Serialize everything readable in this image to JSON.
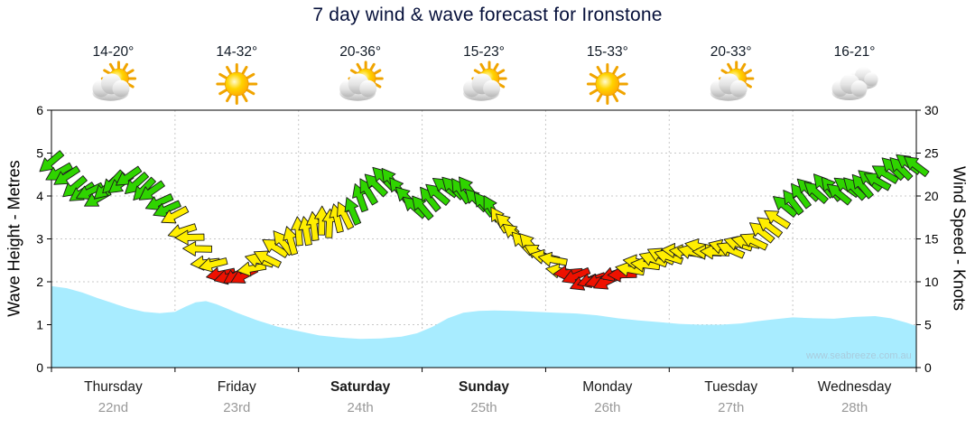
{
  "chart_data": {
    "type": "area+wind_arrows",
    "title": "7 day wind & wave forecast for Ironstone",
    "watermark": "www.seabreeze.com.au",
    "y_axis_left": {
      "label": "Wave Height - Metres",
      "min": 0,
      "max": 6,
      "ticks": [
        0,
        1,
        2,
        3,
        4,
        5,
        6
      ]
    },
    "y_axis_right": {
      "label": "Wind Speed - Knots",
      "min": 0,
      "max": 30,
      "ticks": [
        0,
        5,
        10,
        15,
        20,
        25,
        30
      ]
    },
    "x_axis": {
      "hours_total": 168,
      "days": [
        {
          "name": "Thursday",
          "date": "22nd",
          "temp": "14-20°",
          "icon": "sun-cloud",
          "bold": false
        },
        {
          "name": "Friday",
          "date": "23rd",
          "temp": "14-32°",
          "icon": "sun",
          "bold": false
        },
        {
          "name": "Saturday",
          "date": "24th",
          "temp": "20-36°",
          "icon": "sun-cloud",
          "bold": true
        },
        {
          "name": "Sunday",
          "date": "25th",
          "temp": "15-23°",
          "icon": "sun-cloud",
          "bold": true
        },
        {
          "name": "Monday",
          "date": "26th",
          "temp": "15-33°",
          "icon": "sun",
          "bold": false
        },
        {
          "name": "Tuesday",
          "date": "27th",
          "temp": "20-33°",
          "icon": "sun-cloud",
          "bold": false
        },
        {
          "name": "Wednesday",
          "date": "28th",
          "temp": "16-21°",
          "icon": "cloud",
          "bold": false
        }
      ]
    },
    "wave_height_m": {
      "hours": [
        0,
        3,
        6,
        9,
        12,
        15,
        18,
        21,
        24,
        26,
        28,
        30,
        32,
        34,
        36,
        40,
        44,
        48,
        52,
        56,
        60,
        64,
        68,
        71,
        74,
        77,
        80,
        83,
        86,
        90,
        94,
        98,
        102,
        106,
        110,
        114,
        118,
        122,
        126,
        130,
        134,
        137,
        140,
        144,
        148,
        152,
        156,
        160,
        163,
        166,
        168
      ],
      "values": [
        1.9,
        1.85,
        1.75,
        1.62,
        1.5,
        1.38,
        1.3,
        1.27,
        1.3,
        1.42,
        1.52,
        1.55,
        1.48,
        1.38,
        1.28,
        1.1,
        0.95,
        0.85,
        0.75,
        0.7,
        0.67,
        0.68,
        0.72,
        0.8,
        0.95,
        1.15,
        1.28,
        1.32,
        1.33,
        1.32,
        1.3,
        1.28,
        1.26,
        1.22,
        1.15,
        1.1,
        1.06,
        1.02,
        1.0,
        1.0,
        1.03,
        1.08,
        1.12,
        1.17,
        1.15,
        1.14,
        1.18,
        1.2,
        1.15,
        1.05,
        0.97
      ]
    },
    "wind": {
      "hours": [
        0,
        3,
        6,
        9,
        12,
        15,
        18,
        21,
        24,
        27,
        30,
        33,
        36,
        39,
        42,
        45,
        48,
        51,
        54,
        57,
        60,
        63,
        66,
        69,
        72,
        75,
        78,
        81,
        84,
        87,
        90,
        93,
        96,
        99,
        102,
        105,
        108,
        111,
        114,
        117,
        120,
        123,
        126,
        129,
        132,
        135,
        138,
        141,
        144,
        147,
        150,
        153,
        156,
        159,
        162,
        165,
        168
      ],
      "speed_knots": [
        24,
        22,
        20.5,
        20,
        21.5,
        22,
        21,
        19.5,
        17.5,
        15,
        12.5,
        11,
        10.5,
        11.5,
        13,
        14.5,
        15.5,
        16.5,
        17,
        17.5,
        19.5,
        21.5,
        22,
        19.5,
        18.5,
        20.5,
        21,
        20.5,
        19,
        17.5,
        15.5,
        14,
        13,
        11.5,
        10.5,
        10,
        10.3,
        11,
        12,
        12.5,
        13.2,
        13.5,
        13.8,
        13.5,
        14,
        14.5,
        15.5,
        17.5,
        19.5,
        20.5,
        21,
        20.5,
        21,
        21.5,
        22.5,
        23.5,
        23.5
      ],
      "dir_deg": [
        140,
        145,
        150,
        145,
        140,
        138,
        142,
        148,
        160,
        172,
        180,
        165,
        150,
        170,
        205,
        235,
        260,
        270,
        265,
        252,
        242,
        232,
        226,
        230,
        226,
        222,
        225,
        230,
        235,
        232,
        226,
        220,
        200,
        182,
        165,
        155,
        160,
        175,
        190,
        200,
        196,
        190,
        186,
        190,
        196,
        202,
        210,
        220,
        226,
        230,
        226,
        221,
        225,
        219,
        215,
        220,
        224
      ]
    },
    "colors": {
      "wave_fill": "#a8ecff",
      "arrow_green": "#2fd400",
      "arrow_yellow": "#ffee00",
      "arrow_red": "#ee1100",
      "grid": "#c8c8c8",
      "axis": "#000000",
      "date_text": "#999999",
      "day_text": "#1a1a1a",
      "temp_text": "#101a26",
      "speed_thresholds": {
        "red_max": 11,
        "green_min": 18
      }
    }
  }
}
